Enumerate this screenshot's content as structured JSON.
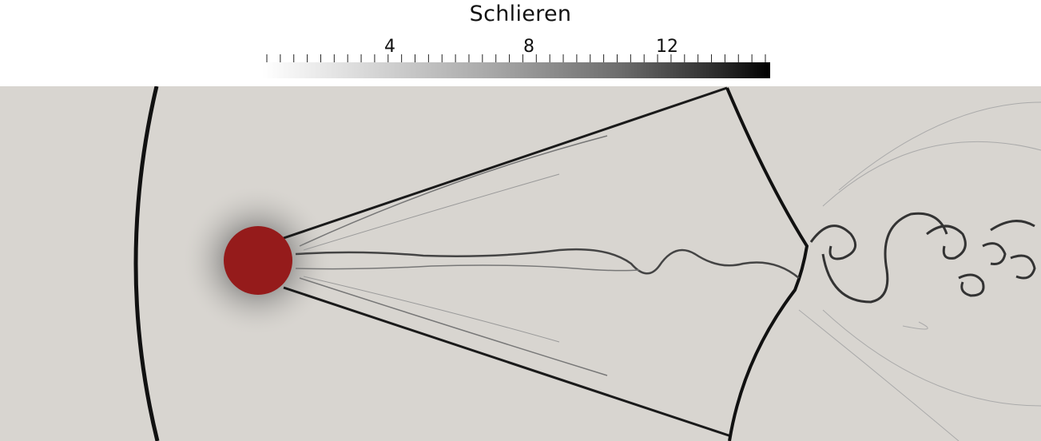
{
  "colorbar": {
    "title": "Schlieren",
    "labels": [
      "4",
      "8",
      "12"
    ],
    "label_values": [
      4,
      8,
      12
    ],
    "range": [
      0,
      14.5
    ]
  },
  "colors": {
    "background": "#d6d3ce",
    "cylinder": "#951b1b",
    "shock": "#111111"
  }
}
